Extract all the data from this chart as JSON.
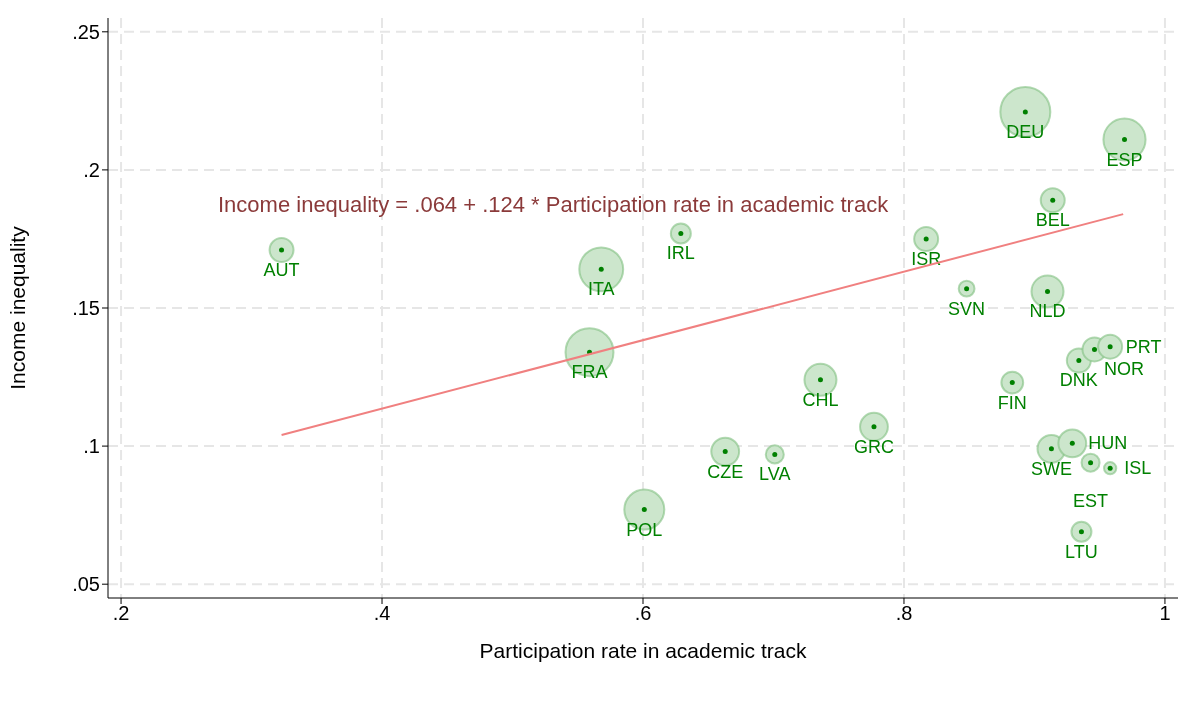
{
  "chart_data": {
    "type": "bubble",
    "xlabel": "Participation rate in academic track",
    "ylabel": "Income inequality",
    "annotations": [
      "Income inequality = .064 + .124 * Participation rate in academic track"
    ],
    "xlim": [
      0.19,
      1.01
    ],
    "xticks": [
      {
        "value": 0.2,
        "label": ".2"
      },
      {
        "value": 0.4,
        "label": ".4"
      },
      {
        "value": 0.6,
        "label": ".6"
      },
      {
        "value": 0.8,
        "label": ".8"
      },
      {
        "value": 1,
        "label": "1"
      }
    ],
    "ylim": [
      0.045,
      0.255
    ],
    "yticks": [
      {
        "value": 0.05,
        "label": ".05"
      },
      {
        "value": 0.1,
        "label": ".1"
      },
      {
        "value": 0.15,
        "label": ".15"
      },
      {
        "value": 0.2,
        "label": ".2"
      },
      {
        "value": 0.25,
        "label": ".25"
      }
    ],
    "grid": true,
    "legend": false,
    "series": [
      {
        "color": "#cce6cc",
        "x": [
          0.323,
          0.568,
          0.629,
          0.559,
          0.736,
          0.777,
          0.663,
          0.701,
          0.601,
          0.817,
          0.848,
          0.893,
          0.969,
          0.914,
          0.91,
          0.883,
          0.934,
          0.946,
          0.958,
          0.913,
          0.929,
          0.943,
          0.958,
          0.936
        ],
        "values": [
          0.171,
          0.164,
          0.177,
          0.134,
          0.124,
          0.107,
          0.098,
          0.097,
          0.077,
          0.175,
          0.157,
          0.221,
          0.211,
          0.189,
          0.156,
          0.123,
          0.131,
          0.135,
          0.136,
          0.099,
          0.101,
          0.094,
          0.092,
          0.069
        ],
        "sizes": [
          0.23,
          0.77,
          0.16,
          0.92,
          0.41,
          0.31,
          0.31,
          0.13,
          0.64,
          0.23,
          0.1,
          1,
          0.71,
          0.23,
          0.41,
          0.19,
          0.23,
          0.23,
          0.23,
          0.31,
          0.31,
          0.13,
          0.06,
          0.16
        ],
        "value_labels": [
          "AUT",
          "ITA",
          "IRL",
          "FRA",
          "CHL",
          "GRC",
          "CZE",
          "LVA",
          "POL",
          "ISR",
          "SVN",
          "DEU",
          "ESP",
          "BEL",
          "NLD",
          "FIN",
          "DNK",
          "NOR",
          "PRT",
          "SWE",
          "HUN",
          "EST",
          "ISL",
          "LTU"
        ]
      },
      {
        "type": "line",
        "color": "#f08080",
        "x": [
          0.323,
          0.968
        ],
        "values": [
          0.104,
          0.184
        ]
      }
    ]
  }
}
